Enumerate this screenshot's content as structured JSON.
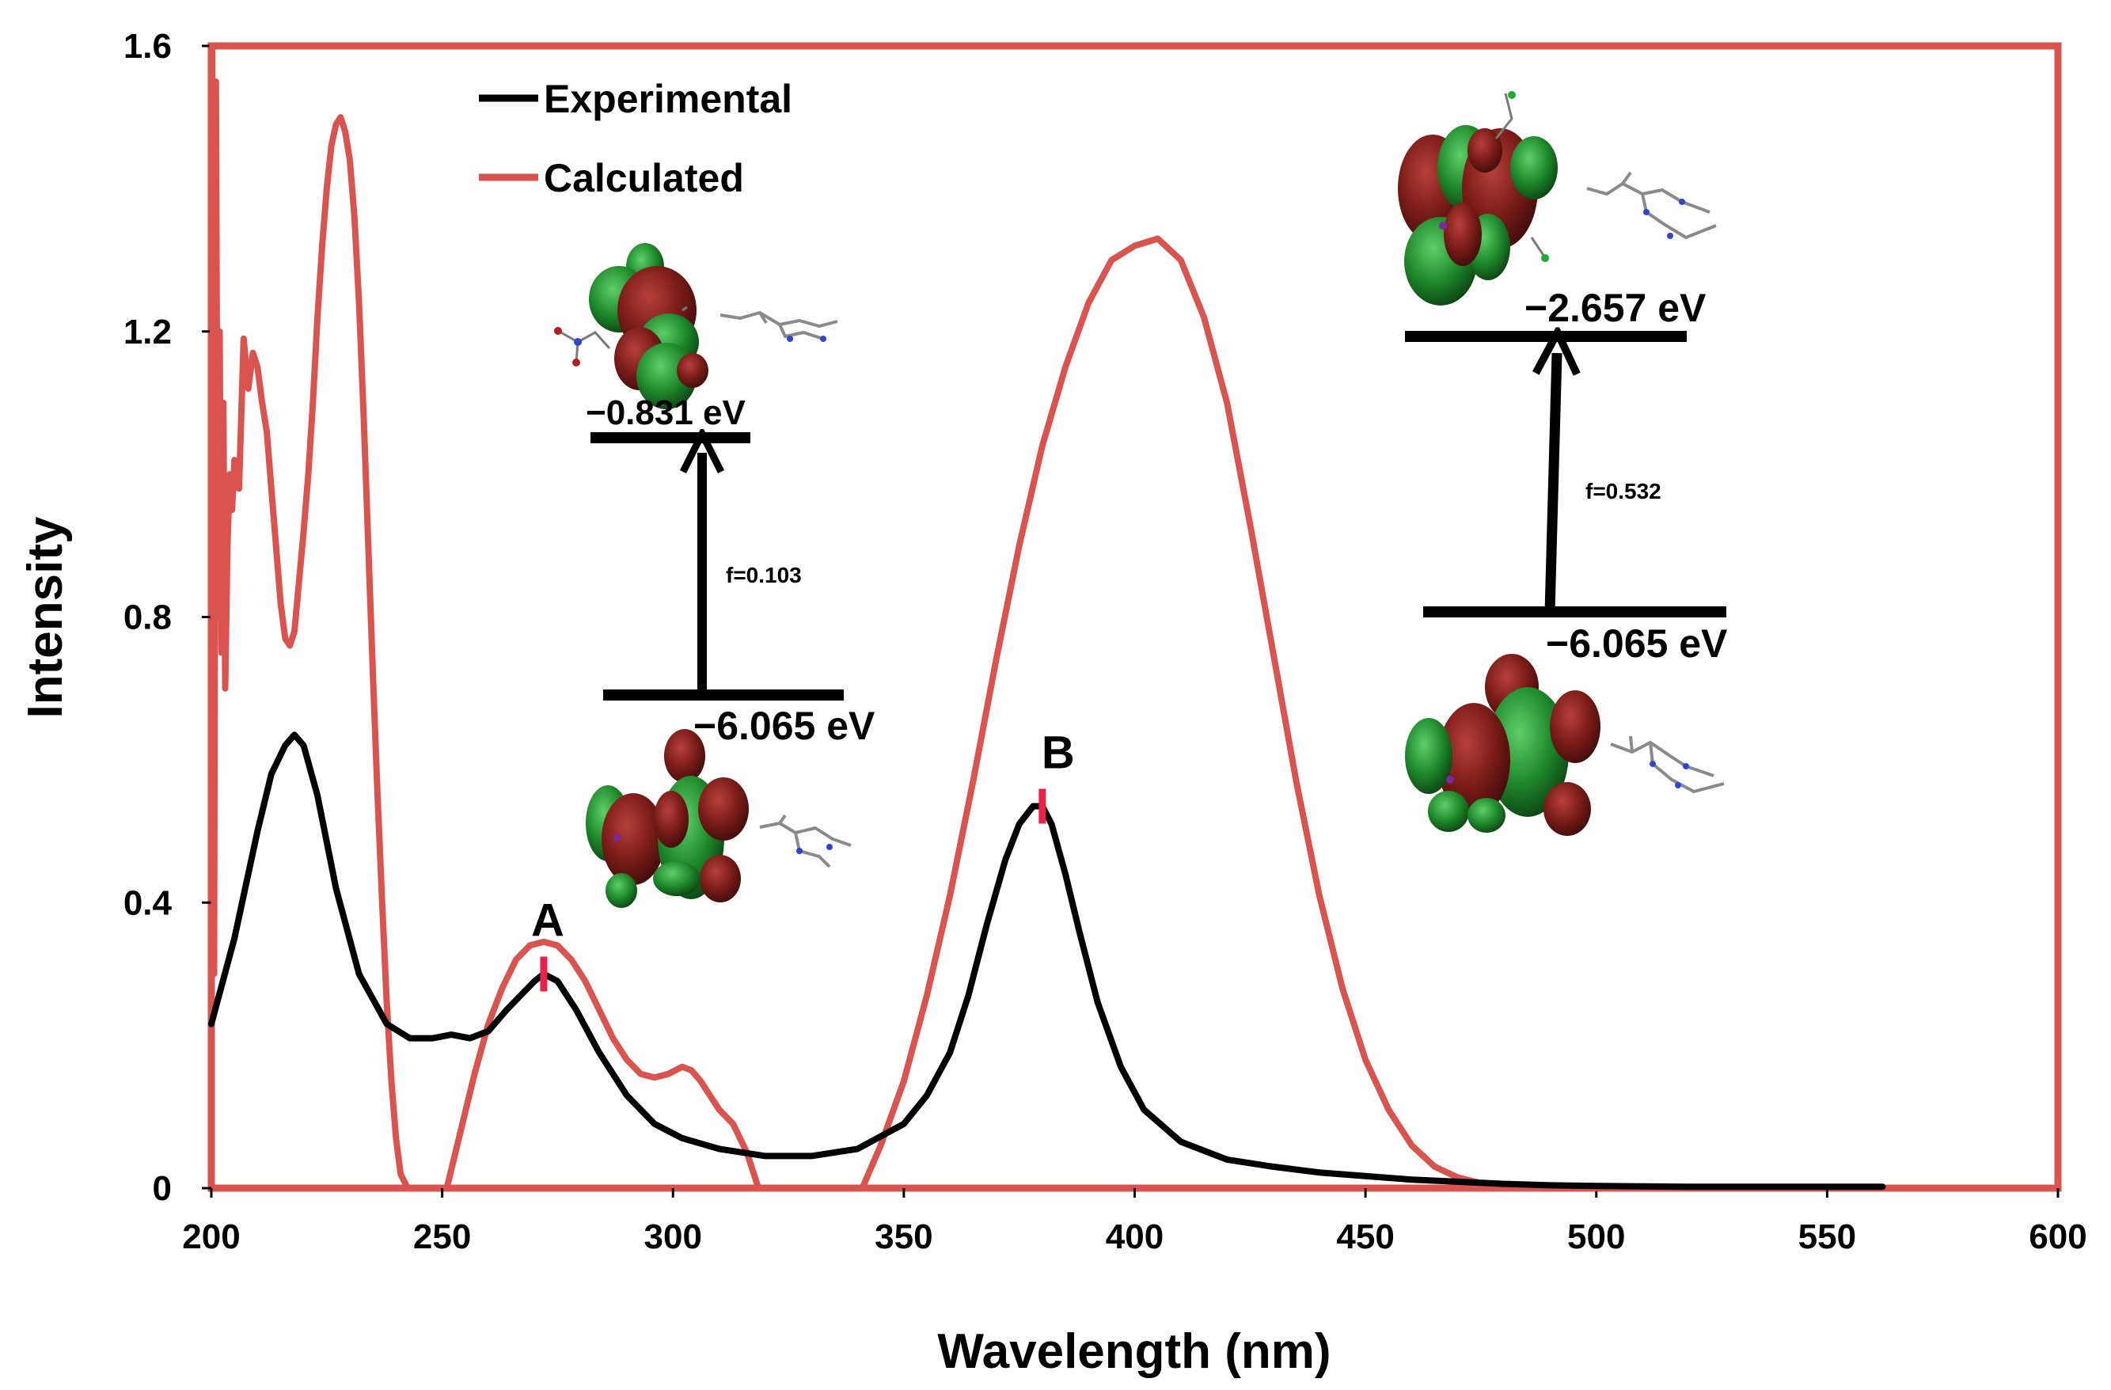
{
  "chart_data": {
    "type": "line",
    "xlabel": "Wavelength (nm)",
    "ylabel": "Intensity",
    "xlim": [
      200,
      600
    ],
    "ylim": [
      0,
      1.6
    ],
    "x_ticks": [
      "200",
      "250",
      "300",
      "350",
      "400",
      "450",
      "500",
      "550",
      "600"
    ],
    "y_ticks": [
      "0",
      "0.4",
      "0.8",
      "1.2",
      "1.6"
    ],
    "legend_position": "top-left",
    "colors": {
      "experimental": "#000000",
      "calculated": "#d9534f",
      "frame": "#d9534f",
      "peak_marker": "#e8234a"
    },
    "series": [
      {
        "name": "Experimental",
        "color": "#000000",
        "x": [
          200,
          205,
          210,
          213,
          216,
          218,
          220,
          223,
          227,
          232,
          238,
          243,
          248,
          252,
          256,
          260,
          264,
          267,
          270,
          272,
          275,
          279,
          284,
          290,
          296,
          302,
          310,
          320,
          330,
          340,
          350,
          355,
          360,
          364,
          368,
          372,
          375,
          378,
          380,
          382,
          385,
          388,
          392,
          397,
          402,
          410,
          420,
          430,
          440,
          450,
          460,
          470,
          480,
          490,
          500,
          520,
          540,
          562
        ],
        "y": [
          0.23,
          0.35,
          0.5,
          0.58,
          0.62,
          0.635,
          0.62,
          0.55,
          0.42,
          0.3,
          0.23,
          0.21,
          0.21,
          0.215,
          0.21,
          0.22,
          0.25,
          0.27,
          0.29,
          0.3,
          0.29,
          0.25,
          0.19,
          0.13,
          0.09,
          0.07,
          0.055,
          0.045,
          0.045,
          0.055,
          0.09,
          0.13,
          0.19,
          0.27,
          0.37,
          0.46,
          0.51,
          0.535,
          0.535,
          0.51,
          0.44,
          0.36,
          0.26,
          0.17,
          0.11,
          0.065,
          0.04,
          0.03,
          0.022,
          0.017,
          0.012,
          0.009,
          0.006,
          0.004,
          0.003,
          0.002,
          0.002,
          0.002
        ],
        "segments": []
      },
      {
        "name": "Calculated",
        "color": "#d9534f",
        "x": [],
        "y": [],
        "segments": [
          {
            "x": [
              200.2,
              200.6,
              201.0,
              201.4,
              201.8,
              202.2,
              202.6,
              203.0,
              203.5,
              204,
              204.5,
              205,
              206,
              207,
              208,
              209,
              210,
              211,
              212,
              213,
              214,
              215,
              216,
              217,
              218,
              219,
              220,
              221,
              222,
              223,
              224,
              225,
              226,
              227,
              228,
              229,
              230,
              231,
              232,
              233,
              234,
              235,
              236,
              237,
              238,
              239,
              240,
              241,
              242.5
            ],
            "y": [
              1.6,
              0.3,
              1.55,
              0.8,
              1.2,
              0.75,
              1.1,
              0.7,
              0.9,
              1.0,
              0.95,
              1.02,
              0.98,
              1.19,
              1.12,
              1.17,
              1.15,
              1.1,
              1.06,
              0.98,
              0.9,
              0.82,
              0.77,
              0.76,
              0.78,
              0.85,
              0.92,
              1.0,
              1.1,
              1.22,
              1.32,
              1.4,
              1.46,
              1.49,
              1.5,
              1.48,
              1.44,
              1.36,
              1.24,
              1.08,
              0.9,
              0.72,
              0.55,
              0.4,
              0.26,
              0.15,
              0.07,
              0.02,
              0.0
            ]
          },
          {
            "x": [
              251,
              254,
              257,
              260,
              263,
              266,
              269,
              272,
              275,
              278,
              281,
              284,
              287,
              290,
              293,
              296,
              299,
              302,
              304,
              306,
              308,
              310,
              313,
              316,
              318.5
            ],
            "y": [
              0.0,
              0.08,
              0.16,
              0.23,
              0.28,
              0.32,
              0.34,
              0.345,
              0.34,
              0.32,
              0.29,
              0.25,
              0.21,
              0.18,
              0.16,
              0.155,
              0.16,
              0.17,
              0.165,
              0.15,
              0.13,
              0.11,
              0.09,
              0.05,
              0.0
            ]
          },
          {
            "x": [
              341,
              345,
              350,
              355,
              360,
              365,
              370,
              375,
              380,
              385,
              390,
              395,
              400,
              405,
              410,
              415,
              420,
              425,
              430,
              435,
              440,
              445,
              450,
              455,
              460,
              465,
              470,
              475,
              480,
              485,
              490,
              500,
              510,
              520
            ],
            "y": [
              0.0,
              0.06,
              0.15,
              0.27,
              0.41,
              0.57,
              0.74,
              0.9,
              1.04,
              1.15,
              1.24,
              1.3,
              1.32,
              1.33,
              1.3,
              1.22,
              1.1,
              0.93,
              0.75,
              0.57,
              0.41,
              0.28,
              0.18,
              0.11,
              0.06,
              0.03,
              0.015,
              0.007,
              0.003,
              0.002,
              0.001,
              0.0,
              0.0,
              0.0
            ]
          }
        ]
      }
    ],
    "peak_labels": [
      {
        "label": "A",
        "x": 272,
        "marker_y": 0.3
      },
      {
        "label": "B",
        "x": 380,
        "marker_y": 0.535
      }
    ],
    "transitions": [
      {
        "lumo_label": "−0.831 eV",
        "homo_label": "−6.065 eV",
        "oscillator": "f=0.103"
      },
      {
        "lumo_label": "−2.657 eV",
        "homo_label": "−6.065 eV",
        "oscillator": "f=0.532"
      }
    ]
  }
}
